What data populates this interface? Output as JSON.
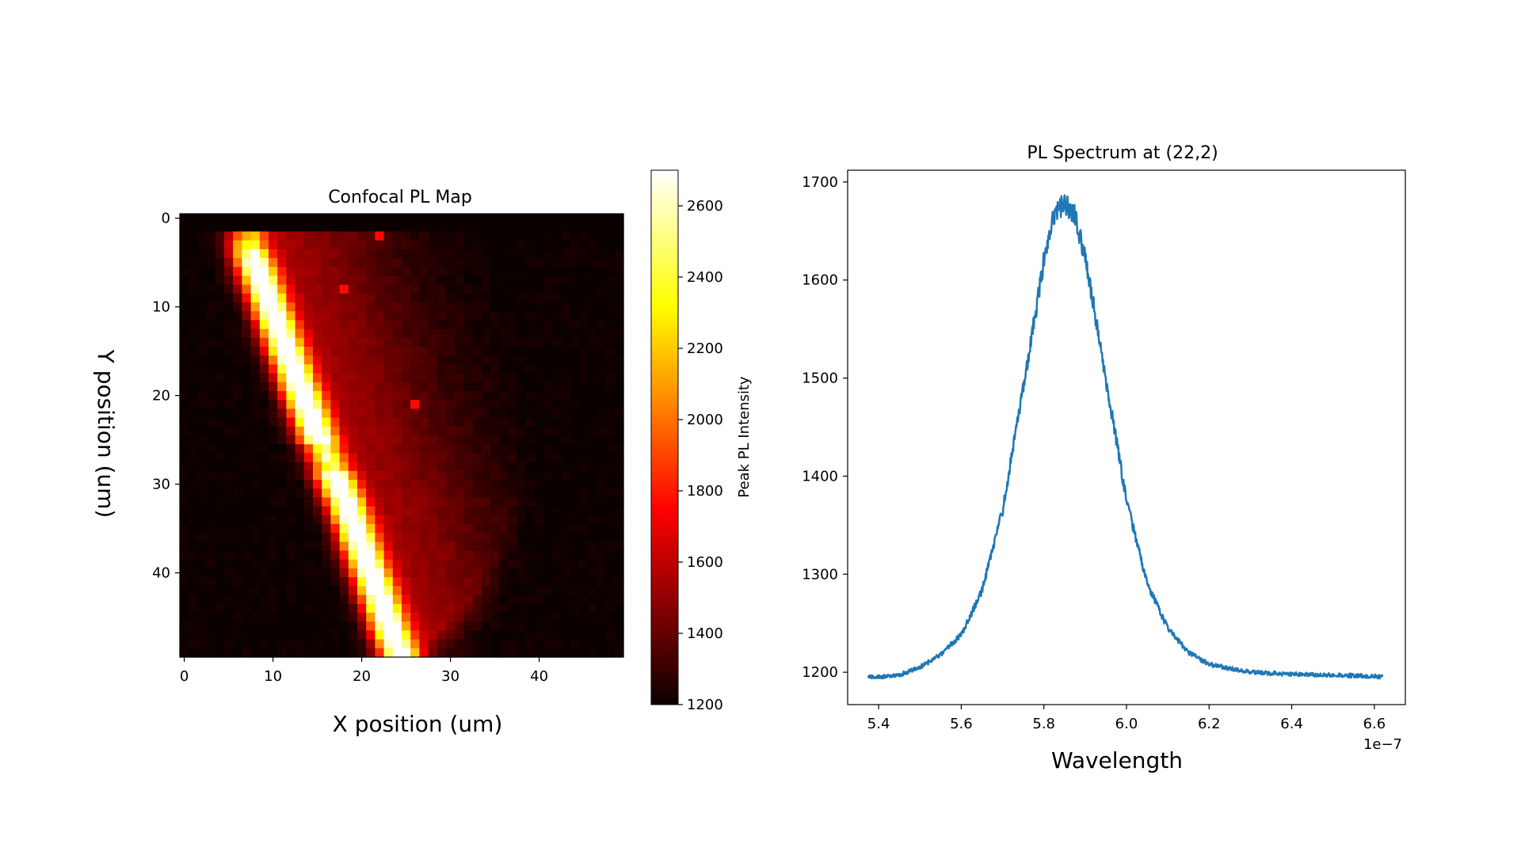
{
  "chart_data": [
    {
      "type": "heatmap",
      "title": "Confocal PL Map",
      "xlabel": "X position (um)",
      "ylabel": "Y position (um)",
      "grid_size": [
        50,
        50
      ],
      "x_range": [
        0,
        50
      ],
      "y_range": [
        0,
        50
      ],
      "xticks": [
        0,
        10,
        20,
        30,
        40
      ],
      "yticks": [
        0,
        10,
        20,
        30,
        40
      ],
      "y_inverted": true,
      "colormap": "hot",
      "colorbar": {
        "label": "Peak PL Intensity",
        "min": 1200,
        "max": 2700,
        "ticks": [
          1200,
          1400,
          1600,
          1800,
          2000,
          2200,
          2400,
          2600
        ]
      },
      "features": {
        "background_min": 1200,
        "diffuse_halo_peak": 1500,
        "streak_peak": 2700,
        "streak_path": [
          [
            7,
            3
          ],
          [
            11,
            14
          ],
          [
            15,
            25
          ],
          [
            18,
            32
          ],
          [
            24,
            49
          ]
        ],
        "hot_pixels": [
          [
            22,
            2
          ],
          [
            18,
            8
          ],
          [
            26,
            21
          ]
        ]
      }
    },
    {
      "type": "line",
      "title": "PL Spectrum at (22,2)",
      "xlabel": "Wavelength",
      "ylabel": "",
      "x_offset_label": "1e−7",
      "xlim": [
        5.325,
        6.675
      ],
      "ylim": [
        1167,
        1712
      ],
      "xticks": [
        5.4,
        5.6,
        5.8,
        6.0,
        6.2,
        6.4,
        6.6
      ],
      "xtick_labels": [
        "5.4",
        "5.6",
        "5.8",
        "6.0",
        "6.2",
        "6.4",
        "6.6"
      ],
      "yticks": [
        1200,
        1300,
        1400,
        1500,
        1600,
        1700
      ],
      "series": [
        {
          "name": "spectrum",
          "color": "#1f77b4",
          "x": [
            5.375,
            5.4,
            5.45,
            5.5,
            5.55,
            5.6,
            5.65,
            5.7,
            5.75,
            5.8,
            5.825,
            5.85,
            5.875,
            5.9,
            5.95,
            6.0,
            6.05,
            6.1,
            6.15,
            6.2,
            6.3,
            6.4,
            6.5,
            6.6,
            6.62
          ],
          "y": [
            1195,
            1195,
            1197,
            1205,
            1218,
            1238,
            1283,
            1365,
            1490,
            1620,
            1665,
            1680,
            1665,
            1625,
            1500,
            1375,
            1290,
            1245,
            1220,
            1208,
            1200,
            1198,
            1197,
            1196,
            1195
          ]
        }
      ]
    }
  ]
}
